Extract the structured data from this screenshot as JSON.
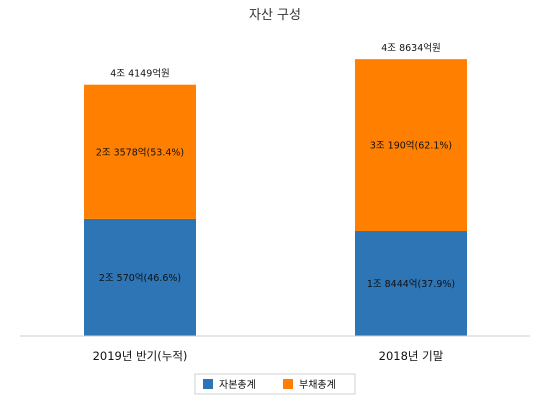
{
  "chart_data": {
    "type": "bar",
    "stacked": true,
    "title": "자산 구성",
    "categories": [
      "2019년 반기(누적)",
      "2018년 기말"
    ],
    "series": [
      {
        "name": "자본총계",
        "color": "#2E75B6",
        "values": [
          20570,
          18444
        ],
        "labels": [
          "2조 570억(46.6%)",
          "1조 8444억(37.9%)"
        ]
      },
      {
        "name": "부채총계",
        "color": "#FF8000",
        "values": [
          23578,
          30190
        ],
        "labels": [
          "2조 3578억(53.4%)",
          "3조 190억(62.1%)"
        ]
      }
    ],
    "totals": [
      44149,
      48634
    ],
    "total_labels": [
      "4조 4149억원",
      "4조 8634억원"
    ],
    "unit": "억원",
    "ylim": [
      0,
      52000
    ],
    "grid": false,
    "legend_position": "bottom"
  }
}
